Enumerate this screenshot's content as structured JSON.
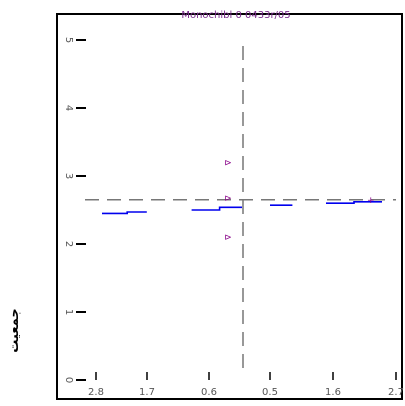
{
  "chart_data": {
    "type": "line",
    "title": "Monochibl 0 0433r/05",
    "ylabel": "جمعیت",
    "xlabel": "",
    "x_tick_labels": [
      "2.8",
      "1.7",
      "0.6",
      "0.5",
      "1.6",
      "2.7"
    ],
    "y_tick_labels": [
      "5",
      "4",
      "3",
      "2",
      "1",
      "0"
    ],
    "xlim": [
      -2.8,
      2.7
    ],
    "ylim": [
      0,
      5
    ],
    "reference_lines": {
      "x": 0.0,
      "y": 2.65
    },
    "series": [
      {
        "values": [
          [
            -2.55,
            2.45
          ],
          [
            -2.1,
            2.45
          ],
          [
            -2.1,
            2.47
          ],
          [
            -1.75,
            2.47
          ]
        ]
      },
      {
        "values": [
          [
            -0.95,
            2.5
          ],
          [
            -0.45,
            2.5
          ],
          [
            -0.45,
            2.54
          ],
          [
            -0.05,
            2.54
          ]
        ]
      },
      {
        "values": [
          [
            0.45,
            2.57
          ],
          [
            0.85,
            2.57
          ]
        ]
      },
      {
        "values": [
          [
            1.45,
            2.6
          ],
          [
            1.95,
            2.6
          ],
          [
            1.95,
            2.62
          ],
          [
            2.45,
            2.62
          ]
        ]
      }
    ],
    "markers": [
      {
        "symbol": "⊳",
        "x": -0.3,
        "y": 3.2
      },
      {
        "symbol": "⊳",
        "x": -0.3,
        "y": 2.68
      },
      {
        "symbol": "⊳",
        "x": -0.3,
        "y": 2.1
      },
      {
        "symbol": "+",
        "x": 2.25,
        "y": 2.65
      }
    ],
    "grid": false,
    "legend": "none",
    "colors": {
      "series": "#0000ee",
      "marker": "#880088",
      "title": "#7a2c8c",
      "reference": "#777777"
    }
  }
}
